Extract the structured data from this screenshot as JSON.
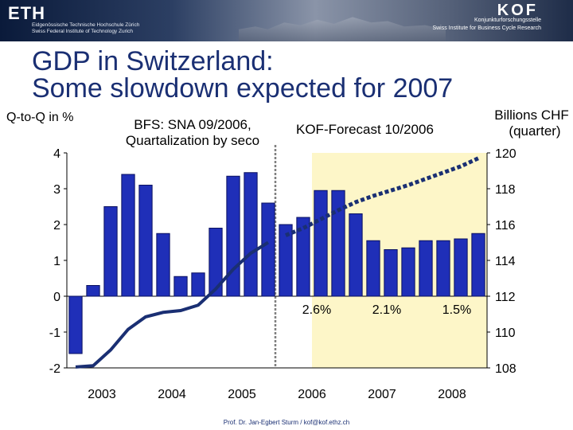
{
  "header": {
    "eth_logo": "ETH",
    "eth_line1": "Eidgenössische Technische Hochschule Zürich",
    "eth_line2": "Swiss Federal Institute of Technology Zurich",
    "kof_logo": "KOF",
    "kof_line1": "Konjunkturforschungsstelle",
    "kof_line2": "Swiss Institute for Business Cycle Research"
  },
  "slide": {
    "title_line1": "GDP in Switzerland:",
    "title_line2": "Some slowdown expected for 2007",
    "footer": "Prof. Dr. Jan-Egbert Sturm / kof@kof.ethz.ch"
  },
  "colors": {
    "title": "#1a2f73",
    "bars": "#1f2fb8",
    "bar_edge": "#0a1160",
    "line": "#1a2f73",
    "forecast_band": "#fdf6c8",
    "divider": "#808080"
  },
  "chart_data": {
    "type": "bar",
    "title": "",
    "left_axis_label": "Q-to-Q in %",
    "right_axis_label_line1": "Billions CHF",
    "right_axis_label_line2": "(quarter)",
    "annotation_history_line1": "BFS: SNA 09/2006,",
    "annotation_history_line2": "Quartalization by seco",
    "annotation_forecast": "KOF-Forecast 10/2006",
    "ylim_left": [
      -2,
      4
    ],
    "ylim_right": [
      108,
      120
    ],
    "left_ticks": [
      "-2",
      "-1",
      "0",
      "1",
      "2",
      "3",
      "4"
    ],
    "right_ticks": [
      "108",
      "110",
      "112",
      "114",
      "116",
      "118",
      "120"
    ],
    "year_labels": [
      "2003",
      "2004",
      "2005",
      "2006",
      "2007",
      "2008"
    ],
    "quarters": [
      "2003Q1",
      "2003Q2",
      "2003Q3",
      "2003Q4",
      "2004Q1",
      "2004Q2",
      "2004Q3",
      "2004Q4",
      "2005Q1",
      "2005Q2",
      "2005Q3",
      "2005Q4",
      "2006Q1",
      "2006Q2",
      "2006Q3",
      "2006Q4",
      "2007Q1",
      "2007Q2",
      "2007Q3",
      "2007Q4",
      "2008Q1",
      "2008Q2",
      "2008Q3",
      "2008Q4"
    ],
    "series": [
      {
        "name": "",
        "type": "bar",
        "axis": "left",
        "values": [
          -1.6,
          0.3,
          2.5,
          3.4,
          3.1,
          1.75,
          0.55,
          0.65,
          1.9,
          3.35,
          3.45,
          2.6,
          2.0,
          2.2,
          2.95,
          2.95,
          2.3,
          1.55,
          1.3,
          1.35,
          1.55,
          1.55,
          1.6,
          1.75
        ]
      },
      {
        "name": "",
        "type": "line",
        "axis": "right",
        "style": "solid",
        "x": [
          "2003Q1",
          "2003Q2",
          "2003Q3",
          "2003Q4",
          "2004Q1",
          "2004Q2",
          "2004Q3",
          "2004Q4",
          "2005Q1",
          "2005Q2",
          "2005Q3",
          "2005Q4"
        ],
        "values": [
          108.05,
          108.12,
          109.0,
          110.15,
          110.85,
          111.1,
          111.2,
          111.5,
          112.4,
          113.5,
          114.4,
          115.0
        ]
      },
      {
        "name": "",
        "type": "line",
        "axis": "right",
        "style": "dashed",
        "x": [
          "2006Q1",
          "2006Q2",
          "2006Q3",
          "2006Q4",
          "2007Q1",
          "2007Q2",
          "2007Q3",
          "2007Q4",
          "2008Q1",
          "2008Q2",
          "2008Q3",
          "2008Q4"
        ],
        "values": [
          115.4,
          115.8,
          116.3,
          116.8,
          117.25,
          117.6,
          117.9,
          118.2,
          118.55,
          118.9,
          119.25,
          119.7
        ]
      }
    ],
    "annual_growth_labels": [
      {
        "year": "2006",
        "text": "2.6%"
      },
      {
        "year": "2007",
        "text": "2.1%"
      },
      {
        "year": "2008",
        "text": "1.5%"
      }
    ],
    "forecast_start": "2006Q3",
    "history_divider": "2006Q1",
    "legend": "none",
    "grid": false
  }
}
